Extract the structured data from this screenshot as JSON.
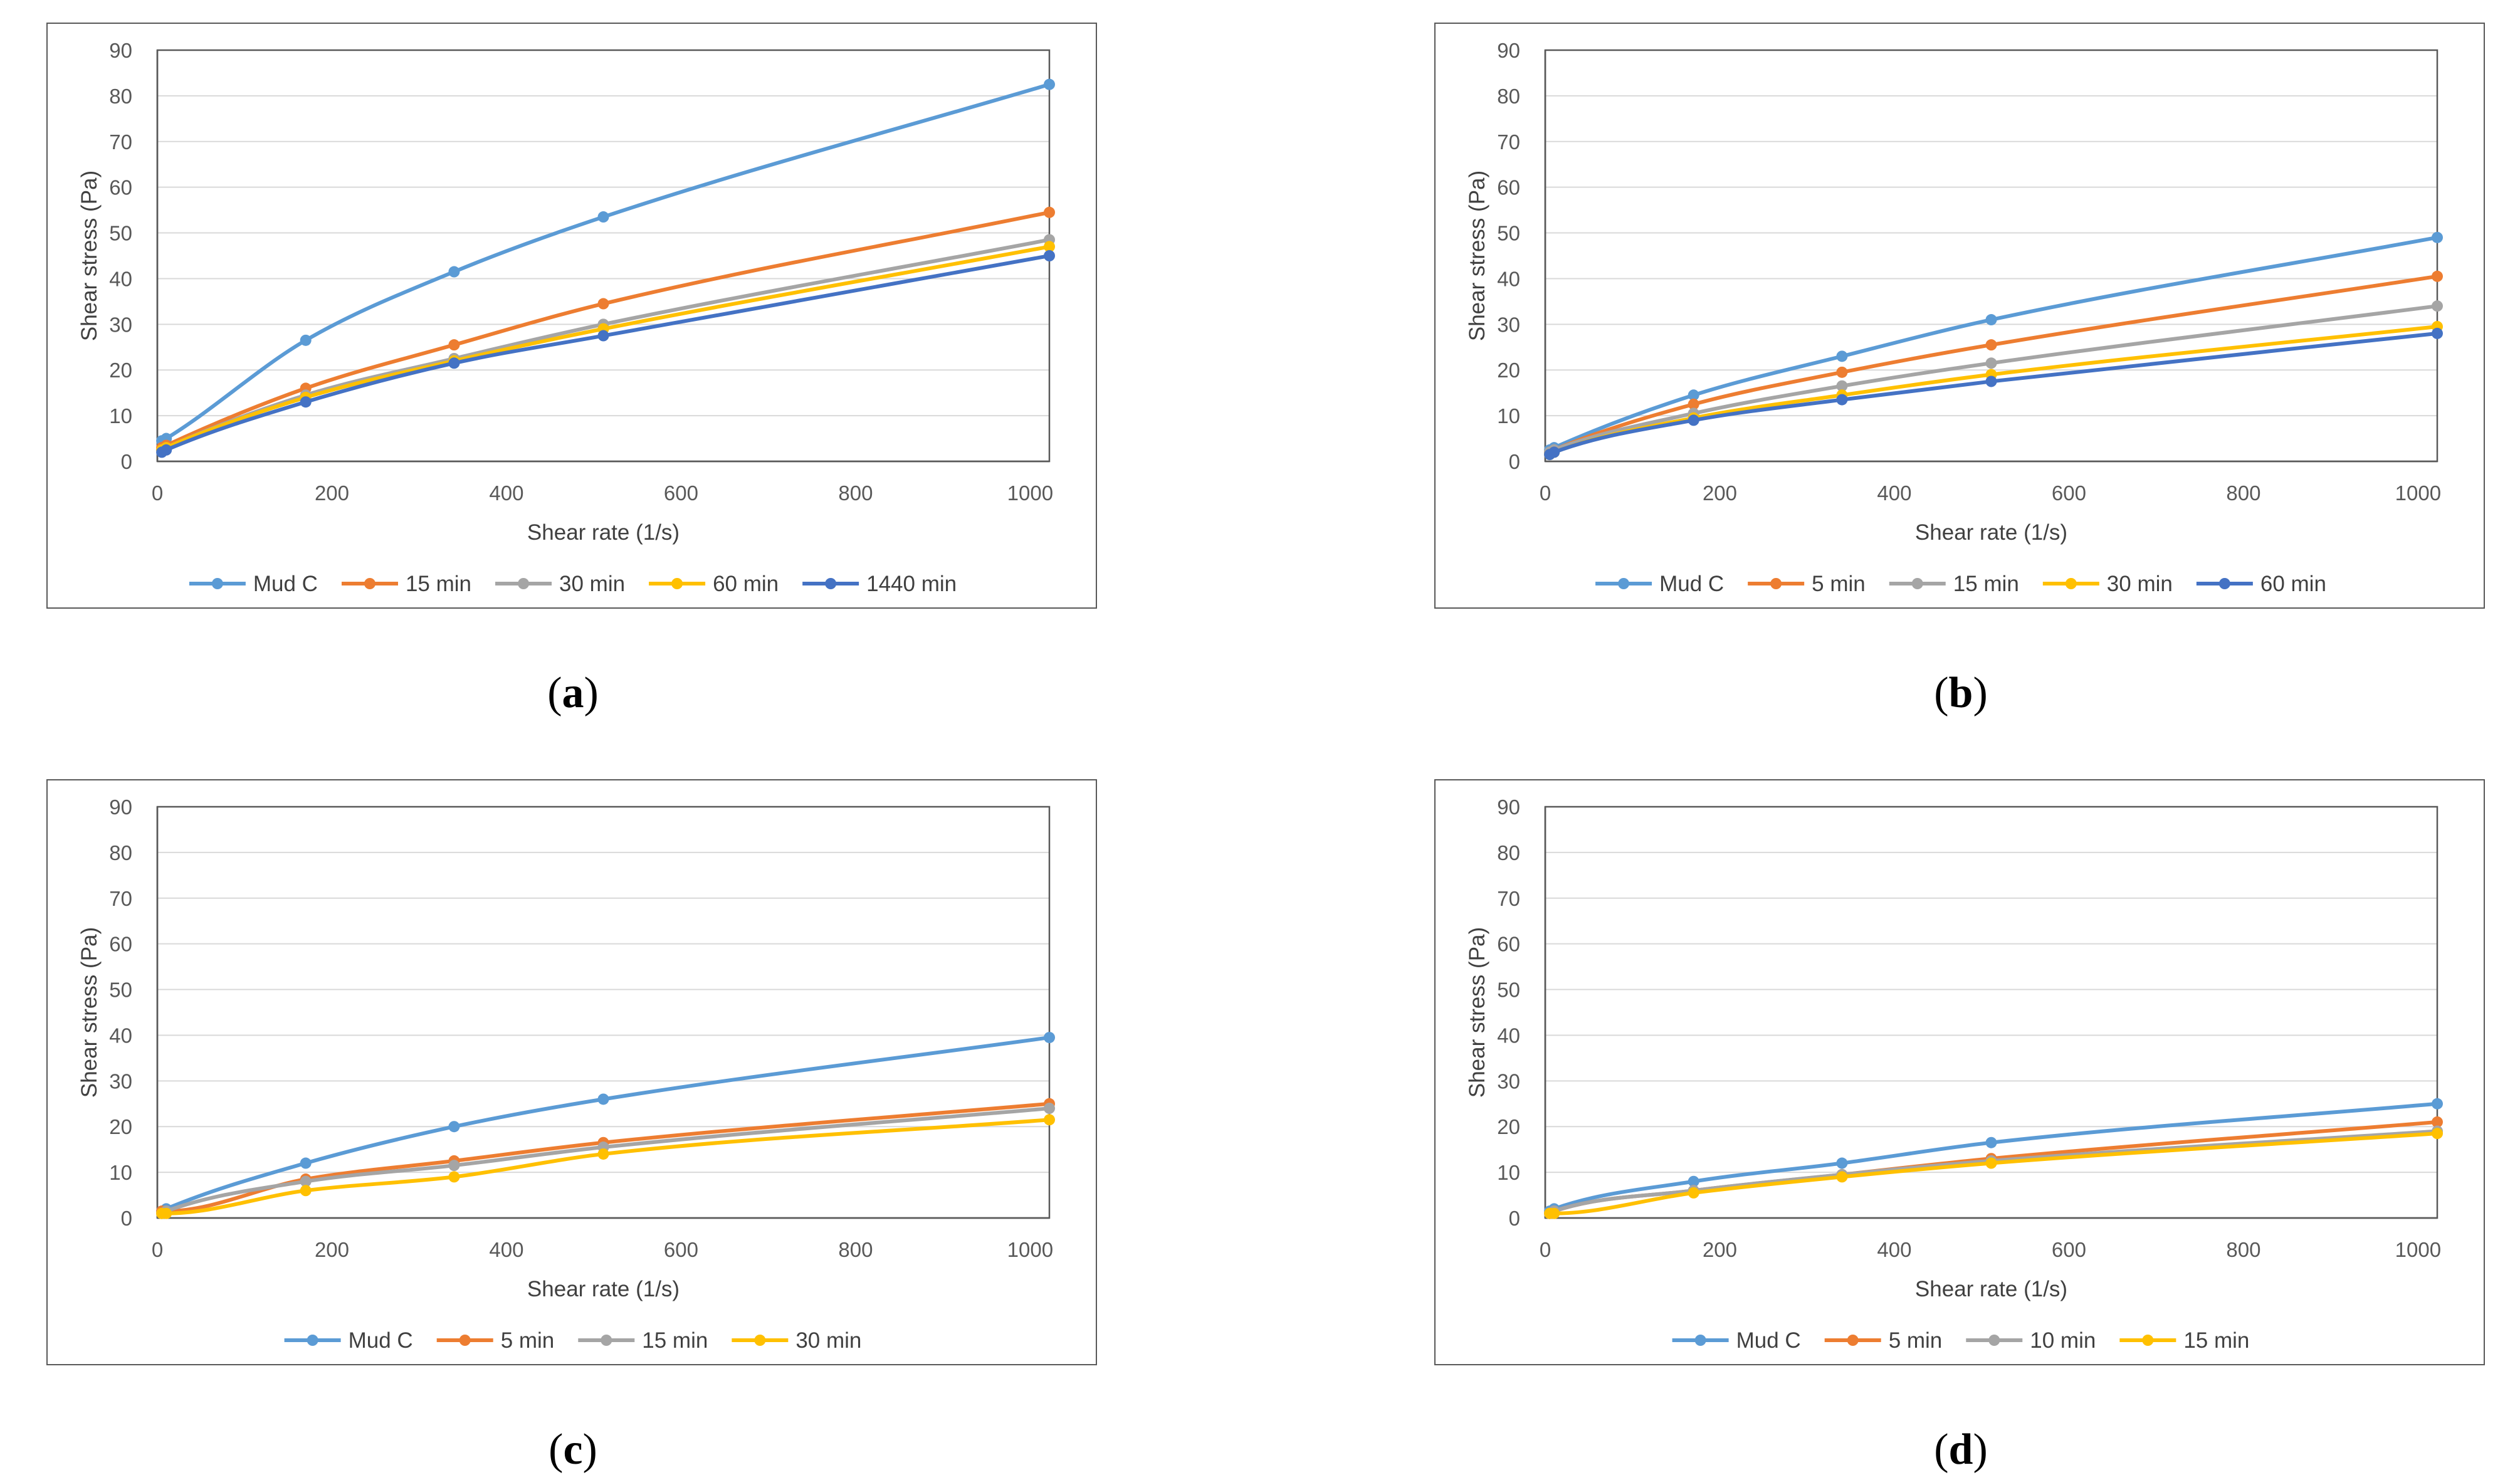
{
  "panels": [
    {
      "label": "a",
      "chart_data": {
        "type": "line",
        "xlabel": "Shear rate (1/s)",
        "ylabel": "Shear stress (Pa)",
        "xlim": [
          0,
          1022
        ],
        "ylim": [
          0,
          90
        ],
        "xticks": [
          0,
          200,
          400,
          600,
          800,
          1000
        ],
        "yticks": [
          0,
          10,
          20,
          30,
          40,
          50,
          60,
          70,
          80,
          90
        ],
        "grid": "horizontal",
        "legend": "bottom",
        "x": [
          5.1,
          10.2,
          170,
          340,
          511,
          1022
        ],
        "series": [
          {
            "name": "Mud C",
            "color": "#5B9BD5",
            "values": [
              4.5,
              5.0,
              26.5,
              41.5,
              53.5,
              82.5
            ]
          },
          {
            "name": "15 min",
            "color": "#ED7D31",
            "values": [
              3.0,
              3.5,
              16.0,
              25.5,
              34.5,
              54.5
            ]
          },
          {
            "name": "30 min",
            "color": "#A5A5A5",
            "values": [
              2.5,
              3.0,
              14.5,
              22.5,
              30.0,
              48.5
            ]
          },
          {
            "name": "60 min",
            "color": "#FFC000",
            "values": [
              2.5,
              3.0,
              14.0,
              22.0,
              29.0,
              47.0
            ]
          },
          {
            "name": "1440 min",
            "color": "#4472C4",
            "values": [
              2.0,
              2.5,
              13.0,
              21.5,
              27.5,
              45.0
            ]
          }
        ]
      }
    },
    {
      "label": "b",
      "chart_data": {
        "type": "line",
        "xlabel": "Shear rate (1/s)",
        "ylabel": "Shear stress (Pa)",
        "xlim": [
          0,
          1022
        ],
        "ylim": [
          0,
          90
        ],
        "xticks": [
          0,
          200,
          400,
          600,
          800,
          1000
        ],
        "yticks": [
          0,
          10,
          20,
          30,
          40,
          50,
          60,
          70,
          80,
          90
        ],
        "grid": "horizontal",
        "legend": "bottom",
        "x": [
          5.1,
          10.2,
          170,
          340,
          511,
          1022
        ],
        "series": [
          {
            "name": "Mud C",
            "color": "#5B9BD5",
            "values": [
              2.5,
              3.0,
              14.5,
              23.0,
              31.0,
              49.0
            ]
          },
          {
            "name": "5 min",
            "color": "#ED7D31",
            "values": [
              2.0,
              2.5,
              12.5,
              19.5,
              25.5,
              40.5
            ]
          },
          {
            "name": "15 min",
            "color": "#A5A5A5",
            "values": [
              2.0,
              2.5,
              10.5,
              16.5,
              21.5,
              34.0
            ]
          },
          {
            "name": "30 min",
            "color": "#FFC000",
            "values": [
              1.5,
              2.0,
              9.5,
              14.5,
              19.0,
              29.5
            ]
          },
          {
            "name": "60 min",
            "color": "#4472C4",
            "values": [
              1.5,
              2.0,
              9.0,
              13.5,
              17.5,
              28.0
            ]
          }
        ]
      }
    },
    {
      "label": "c",
      "chart_data": {
        "type": "line",
        "xlabel": "Shear rate (1/s)",
        "ylabel": "Shear stress (Pa)",
        "xlim": [
          0,
          1022
        ],
        "ylim": [
          0,
          90
        ],
        "xticks": [
          0,
          200,
          400,
          600,
          800,
          1000
        ],
        "yticks": [
          0,
          10,
          20,
          30,
          40,
          50,
          60,
          70,
          80,
          90
        ],
        "grid": "horizontal",
        "legend": "bottom",
        "x": [
          5.1,
          10.2,
          170,
          340,
          511,
          1022
        ],
        "series": [
          {
            "name": "Mud C",
            "color": "#5B9BD5",
            "values": [
              1.5,
              2.0,
              12.0,
              20.0,
              26.0,
              39.5
            ]
          },
          {
            "name": "5 min",
            "color": "#ED7D31",
            "values": [
              1.5,
              1.5,
              8.5,
              12.5,
              16.5,
              25.0
            ]
          },
          {
            "name": "15 min",
            "color": "#A5A5A5",
            "values": [
              1.0,
              1.5,
              8.0,
              11.5,
              15.5,
              24.0
            ]
          },
          {
            "name": "30 min",
            "color": "#FFC000",
            "values": [
              1.0,
              1.0,
              6.0,
              9.0,
              14.0,
              21.5
            ]
          }
        ]
      }
    },
    {
      "label": "d",
      "chart_data": {
        "type": "line",
        "xlabel": "Shear rate (1/s)",
        "ylabel": "Shear stress (Pa)",
        "xlim": [
          0,
          1022
        ],
        "ylim": [
          0,
          90
        ],
        "xticks": [
          0,
          200,
          400,
          600,
          800,
          1000
        ],
        "yticks": [
          0,
          10,
          20,
          30,
          40,
          50,
          60,
          70,
          80,
          90
        ],
        "grid": "horizontal",
        "legend": "bottom",
        "x": [
          5.1,
          10.2,
          170,
          340,
          511,
          1022
        ],
        "series": [
          {
            "name": "Mud C",
            "color": "#5B9BD5",
            "values": [
              1.5,
              2.0,
              8.0,
              12.0,
              16.5,
              25.0
            ]
          },
          {
            "name": "5 min",
            "color": "#ED7D31",
            "values": [
              1.0,
              1.5,
              6.0,
              9.5,
              13.0,
              21.0
            ]
          },
          {
            "name": "10 min",
            "color": "#A5A5A5",
            "values": [
              1.0,
              1.5,
              6.0,
              9.5,
              12.5,
              19.0
            ]
          },
          {
            "name": "15 min",
            "color": "#FFC000",
            "values": [
              1.0,
              1.0,
              5.5,
              9.0,
              12.0,
              18.5
            ]
          }
        ]
      }
    }
  ]
}
